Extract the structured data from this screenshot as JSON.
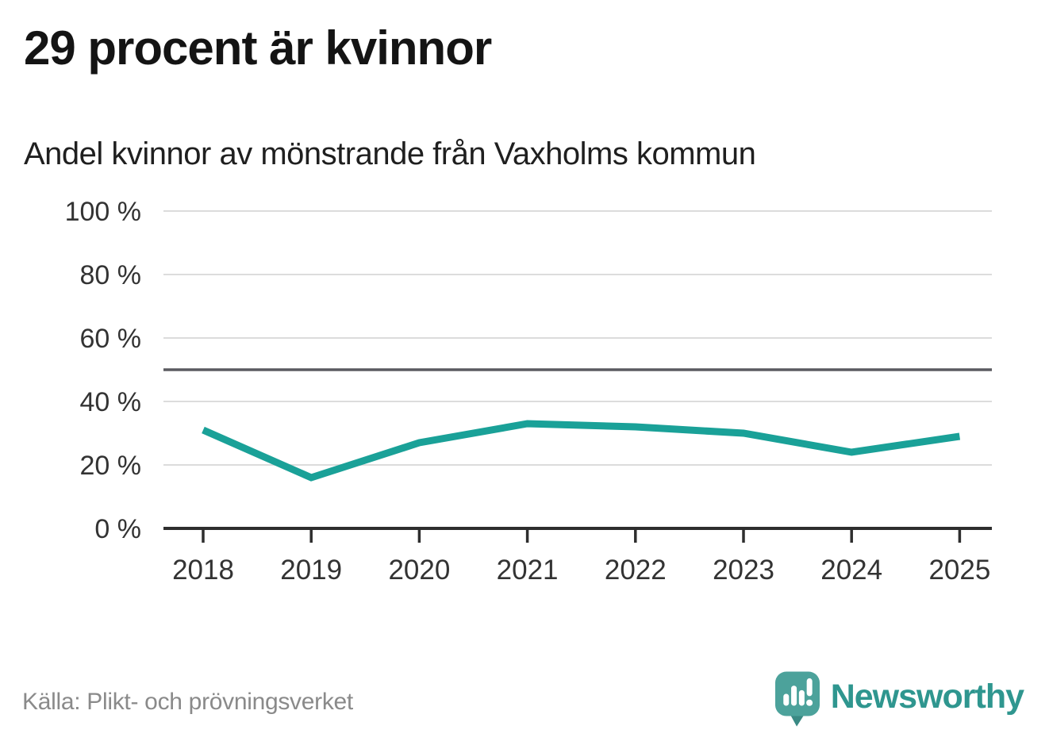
{
  "header": {
    "title": "29 procent är kvinnor",
    "subtitle": "Andel kvinnor av mönstrande från Vaxholms kommun"
  },
  "chart_data": {
    "type": "line",
    "title": "Andel kvinnor av mönstrande från Vaxholms kommun",
    "categories": [
      "2018",
      "2019",
      "2020",
      "2021",
      "2022",
      "2023",
      "2024",
      "2025"
    ],
    "series": [
      {
        "name": "Andel kvinnor av mönstrande",
        "values": [
          31,
          16,
          27,
          33,
          32,
          30,
          24,
          29
        ]
      }
    ],
    "unit": "%",
    "ylim": [
      0,
      100
    ],
    "y_ticks": [
      0,
      20,
      40,
      60,
      80,
      100
    ],
    "y_tick_suffix": " %",
    "reference_line": {
      "value": 50,
      "color": "#5b5b60"
    },
    "grid": true,
    "legend": "none",
    "line_color": "#1aa198",
    "axis_color": "#2e2e2e",
    "grid_color": "#dcdcdc",
    "tick_label_color": "#333333"
  },
  "footer": {
    "source": "Källa: Plikt- och prövningsverket",
    "brand": "Newsworthy",
    "brand_color": "#2f968f",
    "logo_bubble_color": "#4ca29b",
    "logo_tail_color": "#3a8a84"
  }
}
